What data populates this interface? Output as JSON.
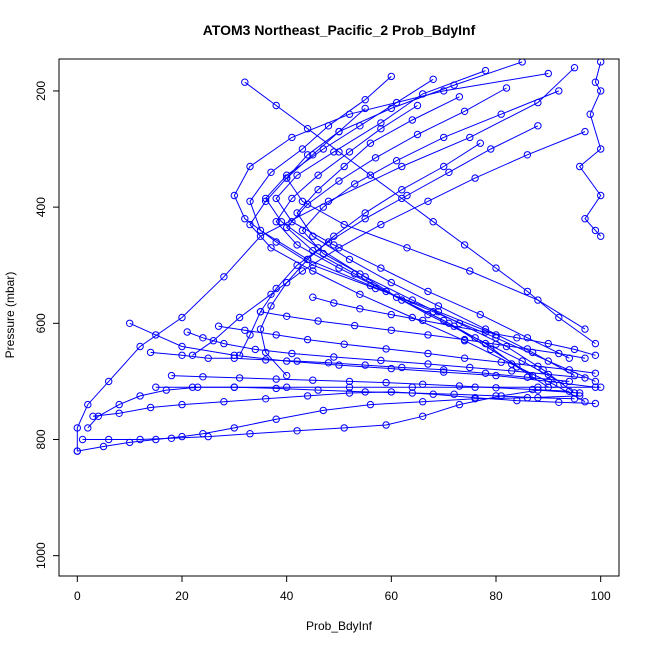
{
  "chart_data": {
    "type": "line",
    "title": "ATOM3 Northeast_Pacific_2 Prob_BdyInf",
    "xlabel": "Prob_BdyInf",
    "ylabel": "Pressure (mbar)",
    "xlim": [
      -3.5,
      103.5
    ],
    "ylim": [
      1035,
      145
    ],
    "y_reversed": true,
    "x_ticks": [
      0,
      20,
      40,
      60,
      80,
      100
    ],
    "y_ticks": [
      200,
      400,
      600,
      800,
      1000
    ],
    "grid": false,
    "legend": "none",
    "line_color": "#0000ff",
    "marker": "open-circle",
    "series": [
      {
        "x": [
          100,
          99,
          100,
          98,
          100,
          96,
          100,
          97,
          99,
          100
        ],
        "y": [
          150,
          185,
          200,
          240,
          300,
          330,
          380,
          420,
          440,
          450
        ]
      },
      {
        "x": [
          95,
          88,
          75,
          62,
          48,
          35,
          28,
          20,
          12,
          6,
          2,
          0,
          0
        ],
        "y": [
          160,
          220,
          280,
          330,
          390,
          450,
          520,
          590,
          640,
          700,
          740,
          780,
          820
        ]
      },
      {
        "x": [
          90,
          70,
          52,
          41,
          33,
          30,
          32,
          38,
          45,
          57,
          69,
          80
        ],
        "y": [
          170,
          200,
          240,
          280,
          330,
          380,
          420,
          460,
          500,
          540,
          580,
          620
        ]
      },
      {
        "x": [
          85,
          72,
          60,
          50,
          44,
          40,
          43,
          51,
          63,
          75,
          88,
          97
        ],
        "y": [
          150,
          190,
          230,
          270,
          310,
          350,
          390,
          430,
          470,
          510,
          560,
          610
        ]
      },
      {
        "x": [
          78,
          66,
          58,
          49,
          42,
          38,
          41,
          49,
          58,
          67,
          77,
          86,
          94
        ],
        "y": [
          165,
          205,
          255,
          305,
          345,
          385,
          425,
          465,
          505,
          545,
          585,
          625,
          660
        ]
      },
      {
        "x": [
          60,
          55,
          48,
          43,
          37,
          33,
          35,
          44,
          56,
          68,
          80,
          90,
          99
        ],
        "y": [
          175,
          215,
          260,
          300,
          340,
          390,
          440,
          490,
          535,
          580,
          625,
          665,
          700
        ]
      },
      {
        "x": [
          68,
          61,
          54,
          47,
          40,
          36,
          39,
          46,
          54,
          62,
          71,
          79,
          87
        ],
        "y": [
          180,
          220,
          260,
          300,
          345,
          385,
          425,
          470,
          515,
          560,
          600,
          645,
          690
        ]
      },
      {
        "x": [
          82,
          74,
          65,
          57,
          50,
          44,
          40,
          45,
          53,
          61,
          70,
          78,
          84,
          90
        ],
        "y": [
          195,
          235,
          275,
          315,
          355,
          395,
          435,
          475,
          515,
          555,
          595,
          635,
          675,
          710
        ]
      },
      {
        "x": [
          73,
          64,
          56,
          51,
          46,
          42,
          45,
          52,
          60,
          69,
          78,
          87,
          95
        ],
        "y": [
          210,
          250,
          290,
          330,
          370,
          410,
          450,
          490,
          530,
          570,
          610,
          650,
          690
        ]
      },
      {
        "x": [
          92,
          81,
          70,
          61,
          53,
          47,
          43,
          47,
          55,
          64,
          73,
          82,
          89,
          95
        ],
        "y": [
          200,
          240,
          280,
          320,
          360,
          400,
          440,
          480,
          520,
          560,
          600,
          640,
          680,
          720
        ]
      },
      {
        "x": [
          65,
          58,
          52,
          46,
          41,
          38,
          42,
          50,
          59,
          67,
          76,
          85,
          93
        ],
        "y": [
          225,
          265,
          305,
          345,
          385,
          425,
          465,
          505,
          545,
          585,
          625,
          665,
          705
        ]
      },
      {
        "x": [
          55,
          50,
          45,
          40,
          36,
          33,
          37,
          45,
          54,
          64,
          74,
          83,
          91,
          97
        ],
        "y": [
          230,
          270,
          310,
          350,
          390,
          430,
          470,
          510,
          550,
          590,
          630,
          670,
          705,
          735
        ]
      },
      {
        "x": [
          32,
          38,
          44,
          50,
          56,
          62,
          68,
          74,
          80,
          86,
          92,
          99
        ],
        "y": [
          185,
          225,
          265,
          305,
          345,
          385,
          425,
          465,
          505,
          545,
          590,
          635
        ]
      },
      {
        "x": [
          88,
          79,
          71,
          63,
          55,
          48,
          42,
          38,
          35,
          33,
          31
        ],
        "y": [
          260,
          300,
          340,
          380,
          420,
          460,
          500,
          540,
          580,
          620,
          655
        ]
      },
      {
        "x": [
          97,
          86,
          76,
          67,
          58,
          50,
          43,
          37,
          31,
          26,
          22
        ],
        "y": [
          270,
          310,
          350,
          390,
          430,
          470,
          510,
          550,
          590,
          630,
          655
        ]
      },
      {
        "x": [
          77,
          70,
          62,
          55,
          49,
          44,
          40,
          37,
          35,
          36,
          40
        ],
        "y": [
          290,
          330,
          370,
          410,
          450,
          490,
          530,
          570,
          610,
          650,
          690
        ]
      },
      {
        "x": [
          10,
          15,
          20,
          30,
          40,
          50,
          60,
          70,
          80,
          90,
          99
        ],
        "y": [
          600,
          620,
          640,
          655,
          665,
          672,
          678,
          684,
          690,
          700,
          710
        ]
      },
      {
        "x": [
          14,
          20,
          25,
          30,
          36,
          42,
          48,
          55,
          62,
          70,
          78,
          86,
          94
        ],
        "y": [
          650,
          655,
          660,
          660,
          663,
          665,
          668,
          672,
          676,
          680,
          686,
          693,
          700
        ]
      },
      {
        "x": [
          15,
          22,
          30,
          40,
          52,
          64,
          76,
          88,
          100
        ],
        "y": [
          710,
          710,
          710,
          710,
          710,
          710,
          710,
          710,
          710
        ]
      },
      {
        "x": [
          3,
          8,
          14,
          20,
          28,
          36,
          44,
          52,
          60,
          68,
          76,
          84,
          92,
          99
        ],
        "y": [
          760,
          755,
          745,
          740,
          735,
          730,
          725,
          720,
          718,
          722,
          728,
          733,
          736,
          738
        ]
      },
      {
        "x": [
          1,
          6,
          12,
          18,
          25,
          33,
          42,
          51,
          59,
          66,
          73,
          81,
          88,
          96
        ],
        "y": [
          800,
          800,
          800,
          798,
          795,
          790,
          785,
          780,
          775,
          760,
          740,
          725,
          715,
          720
        ]
      },
      {
        "x": [
          0,
          5,
          10,
          15,
          20,
          24,
          30,
          38,
          47,
          56,
          66,
          76,
          86,
          96
        ],
        "y": [
          820,
          812,
          805,
          800,
          795,
          790,
          780,
          765,
          750,
          740,
          735,
          730,
          728,
          725
        ]
      },
      {
        "x": [
          2,
          4,
          8,
          12,
          17,
          23,
          30,
          38,
          46,
          55,
          64,
          72,
          80,
          88,
          95
        ],
        "y": [
          780,
          760,
          740,
          725,
          715,
          710,
          710,
          712,
          715,
          718,
          720,
          722,
          725,
          728,
          730
        ]
      },
      {
        "x": [
          21,
          24,
          28,
          34,
          41,
          49,
          58,
          67,
          75,
          83,
          90,
          97
        ],
        "y": [
          615,
          625,
          635,
          645,
          652,
          658,
          664,
          670,
          676,
          682,
          688,
          694
        ]
      },
      {
        "x": [
          27,
          32,
          38,
          44,
          51,
          59,
          67,
          74,
          81,
          88,
          94,
          99
        ],
        "y": [
          605,
          612,
          620,
          628,
          636,
          644,
          652,
          660,
          667,
          674,
          680,
          686
        ]
      },
      {
        "x": [
          35,
          40,
          46,
          53,
          60,
          67,
          74,
          80,
          86,
          92,
          97
        ],
        "y": [
          580,
          588,
          596,
          604,
          612,
          620,
          628,
          636,
          644,
          652,
          660
        ]
      },
      {
        "x": [
          45,
          49,
          54,
          60,
          66,
          72,
          78,
          84,
          90,
          95,
          99
        ],
        "y": [
          555,
          565,
          575,
          585,
          595,
          605,
          615,
          625,
          635,
          645,
          655
        ]
      },
      {
        "x": [
          18,
          24,
          31,
          38,
          45,
          52,
          59,
          66,
          73,
          80,
          87,
          94
        ],
        "y": [
          690,
          692,
          694,
          696,
          698,
          700,
          702,
          705,
          708,
          711,
          714,
          717
        ]
      }
    ]
  }
}
